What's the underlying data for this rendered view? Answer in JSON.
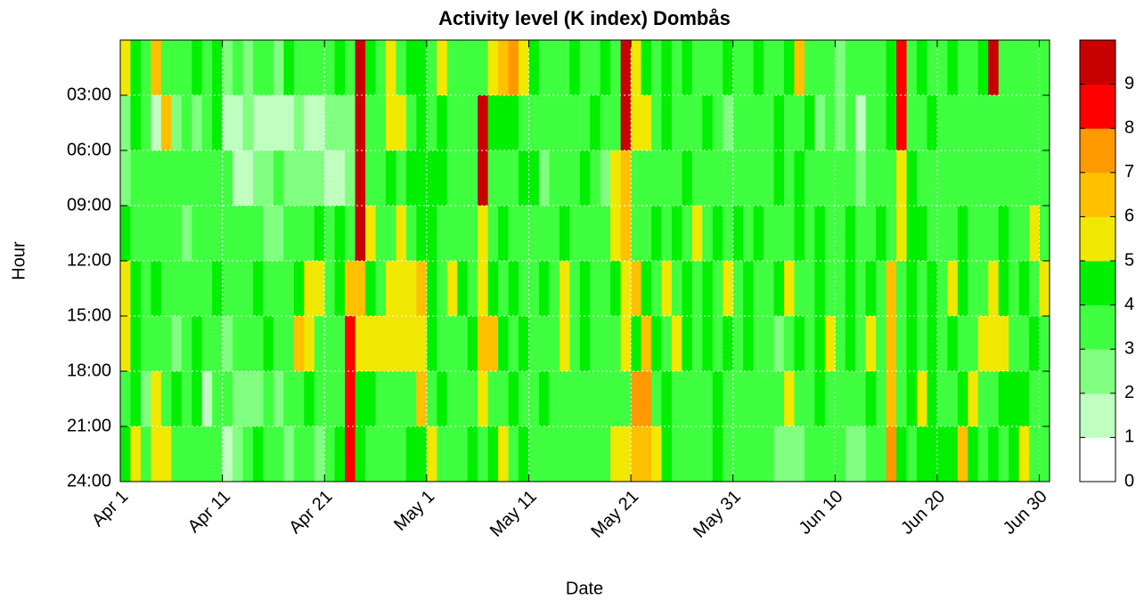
{
  "chart_data": {
    "type": "heatmap",
    "title": "Activity level (K index) Dombås",
    "x_label": "Date",
    "y_label": "Hour",
    "xlim": [
      0,
      91
    ],
    "xticks": [
      {
        "value": 0,
        "label": "Apr 1"
      },
      {
        "value": 10,
        "label": "Apr 11"
      },
      {
        "value": 20,
        "label": "Apr 21"
      },
      {
        "value": 30,
        "label": "May 1"
      },
      {
        "value": 40,
        "label": "May 11"
      },
      {
        "value": 50,
        "label": "May 21"
      },
      {
        "value": 60,
        "label": "May 31"
      },
      {
        "value": 70,
        "label": "Jun 10"
      },
      {
        "value": 80,
        "label": "Jun 20"
      },
      {
        "value": 90,
        "label": "Jun 30"
      }
    ],
    "ylim": [
      24,
      0
    ],
    "yticks": [
      {
        "value": 3,
        "label": "03:00"
      },
      {
        "value": 6,
        "label": "06:00"
      },
      {
        "value": 9,
        "label": "09:00"
      },
      {
        "value": 12,
        "label": "12:00"
      },
      {
        "value": 15,
        "label": "15:00"
      },
      {
        "value": 18,
        "label": "18:00"
      },
      {
        "value": 21,
        "label": "21:00"
      },
      {
        "value": 24,
        "label": "24:00"
      }
    ],
    "grid": true,
    "zlim": [
      0,
      10
    ],
    "zticks": [
      0,
      1,
      2,
      3,
      4,
      5,
      6,
      7,
      8,
      9
    ],
    "colors": [
      "#ffffff",
      "#bfffbf",
      "#80ff80",
      "#40ff40",
      "#00f000",
      "#f0e800",
      "#ffc000",
      "#ff9900",
      "#ff0000",
      "#c80000"
    ],
    "z": [
      [
        5,
        4,
        3,
        6,
        3,
        3,
        3,
        4,
        3,
        4,
        2,
        3,
        2,
        3,
        3,
        2,
        4,
        3,
        3,
        3,
        3,
        4,
        3,
        9,
        4,
        3,
        5,
        3,
        4,
        4,
        3,
        5,
        3,
        3,
        3,
        3,
        5,
        6,
        7,
        5,
        4,
        3,
        3,
        3,
        4,
        3,
        3,
        4,
        3,
        9,
        5,
        4,
        3,
        4,
        3,
        4,
        3,
        3,
        3,
        4,
        3,
        3,
        4,
        3,
        3,
        4,
        6,
        3,
        3,
        3,
        2,
        3,
        3,
        3,
        3,
        4,
        8,
        3,
        4,
        3,
        3,
        4,
        3,
        3,
        4,
        9,
        3,
        3,
        3,
        3,
        3
      ],
      [
        2,
        4,
        3,
        1,
        6,
        2,
        3,
        2,
        3,
        4,
        1,
        1,
        2,
        1,
        1,
        1,
        1,
        2,
        1,
        1,
        2,
        2,
        2,
        9,
        3,
        3,
        5,
        5,
        3,
        4,
        3,
        4,
        3,
        3,
        3,
        9,
        4,
        4,
        4,
        3,
        3,
        3,
        3,
        3,
        3,
        3,
        4,
        3,
        3,
        9,
        5,
        5,
        3,
        4,
        3,
        3,
        3,
        4,
        3,
        2,
        3,
        3,
        3,
        3,
        4,
        3,
        3,
        4,
        2,
        3,
        2,
        3,
        1,
        3,
        3,
        4,
        8,
        3,
        3,
        4,
        3,
        3,
        3,
        3,
        3,
        3,
        3,
        3,
        3,
        3,
        3
      ],
      [
        2,
        3,
        3,
        3,
        3,
        3,
        3,
        3,
        3,
        3,
        3,
        1,
        1,
        2,
        2,
        3,
        2,
        2,
        2,
        2,
        1,
        1,
        2,
        9,
        3,
        3,
        4,
        3,
        4,
        4,
        4,
        4,
        3,
        3,
        3,
        9,
        3,
        3,
        3,
        4,
        4,
        2,
        3,
        3,
        3,
        4,
        3,
        2,
        5,
        6,
        3,
        3,
        3,
        3,
        3,
        4,
        3,
        3,
        3,
        3,
        3,
        3,
        3,
        3,
        4,
        3,
        4,
        3,
        3,
        3,
        3,
        3,
        2,
        3,
        3,
        3,
        5,
        4,
        3,
        3,
        3,
        3,
        3,
        3,
        3,
        3,
        3,
        3,
        3,
        3,
        3
      ],
      [
        4,
        3,
        3,
        3,
        3,
        3,
        2,
        3,
        3,
        3,
        3,
        3,
        3,
        3,
        2,
        2,
        3,
        3,
        3,
        4,
        3,
        4,
        3,
        9,
        5,
        3,
        3,
        5,
        3,
        4,
        4,
        3,
        3,
        3,
        3,
        5,
        3,
        4,
        3,
        3,
        3,
        3,
        3,
        4,
        3,
        3,
        3,
        3,
        5,
        6,
        3,
        3,
        4,
        3,
        4,
        3,
        5,
        3,
        4,
        3,
        4,
        3,
        4,
        3,
        3,
        3,
        4,
        3,
        4,
        3,
        3,
        4,
        3,
        3,
        4,
        3,
        5,
        4,
        4,
        3,
        3,
        3,
        4,
        3,
        3,
        3,
        4,
        3,
        3,
        5,
        3
      ],
      [
        5,
        4,
        3,
        4,
        3,
        3,
        3,
        3,
        3,
        4,
        3,
        3,
        3,
        4,
        3,
        3,
        3,
        4,
        5,
        5,
        3,
        4,
        6,
        6,
        4,
        3,
        5,
        5,
        5,
        6,
        4,
        3,
        5,
        4,
        3,
        5,
        4,
        3,
        4,
        3,
        3,
        4,
        3,
        5,
        3,
        4,
        3,
        3,
        4,
        5,
        6,
        4,
        3,
        5,
        3,
        4,
        3,
        4,
        3,
        5,
        3,
        4,
        3,
        3,
        4,
        5,
        3,
        3,
        4,
        3,
        3,
        4,
        3,
        4,
        3,
        6,
        3,
        4,
        3,
        4,
        3,
        5,
        4,
        3,
        3,
        5,
        4,
        3,
        4,
        3,
        5
      ],
      [
        5,
        4,
        3,
        3,
        3,
        2,
        3,
        4,
        3,
        3,
        2,
        3,
        3,
        3,
        4,
        3,
        3,
        6,
        5,
        3,
        3,
        3,
        8,
        5,
        5,
        5,
        5,
        5,
        5,
        5,
        4,
        3,
        3,
        3,
        4,
        6,
        6,
        4,
        3,
        4,
        3,
        3,
        3,
        5,
        3,
        4,
        3,
        3,
        3,
        5,
        4,
        6,
        4,
        3,
        5,
        4,
        3,
        4,
        3,
        4,
        3,
        4,
        3,
        3,
        2,
        3,
        4,
        3,
        4,
        5,
        3,
        4,
        3,
        5,
        3,
        6,
        3,
        4,
        3,
        4,
        3,
        4,
        3,
        3,
        5,
        5,
        5,
        3,
        3,
        4,
        3
      ],
      [
        3,
        4,
        2,
        5,
        3,
        4,
        3,
        4,
        1,
        3,
        3,
        2,
        2,
        2,
        3,
        2,
        3,
        3,
        4,
        3,
        3,
        3,
        8,
        4,
        4,
        3,
        3,
        3,
        3,
        6,
        3,
        4,
        3,
        3,
        3,
        5,
        3,
        3,
        4,
        3,
        3,
        4,
        3,
        3,
        3,
        3,
        3,
        3,
        3,
        3,
        7,
        7,
        3,
        4,
        3,
        3,
        3,
        3,
        4,
        3,
        3,
        3,
        3,
        3,
        3,
        5,
        3,
        3,
        4,
        3,
        3,
        3,
        3,
        4,
        3,
        6,
        3,
        4,
        5,
        4,
        3,
        3,
        4,
        5,
        3,
        3,
        4,
        4,
        4,
        3,
        3
      ],
      [
        4,
        5,
        3,
        5,
        5,
        3,
        3,
        3,
        3,
        3,
        1,
        2,
        3,
        4,
        3,
        3,
        2,
        3,
        3,
        2,
        3,
        4,
        8,
        4,
        3,
        3,
        3,
        3,
        4,
        4,
        5,
        3,
        3,
        3,
        4,
        3,
        4,
        5,
        3,
        4,
        3,
        3,
        3,
        3,
        3,
        3,
        3,
        3,
        5,
        5,
        6,
        6,
        5,
        4,
        3,
        3,
        3,
        3,
        4,
        3,
        3,
        3,
        3,
        3,
        2,
        2,
        2,
        3,
        3,
        3,
        3,
        2,
        2,
        3,
        3,
        7,
        4,
        3,
        4,
        4,
        4,
        4,
        6,
        4,
        3,
        4,
        3,
        4,
        5,
        3,
        3
      ]
    ]
  }
}
